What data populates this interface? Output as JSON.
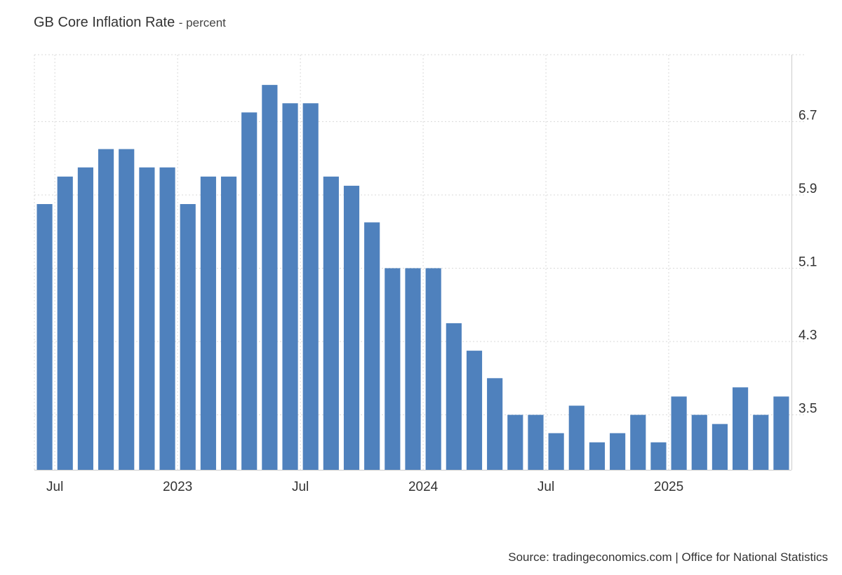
{
  "title": "GB Core Inflation Rate",
  "subtitle": "- percent",
  "source": "Source: tradingeconomics.com | Office for National Statistics",
  "colors": {
    "bar": "#4f81bd",
    "grid": "#d9d9d9",
    "axis": "#cccccc"
  },
  "chart_data": {
    "type": "bar",
    "x": [
      "2022-06",
      "2022-07",
      "2022-08",
      "2022-09",
      "2022-10",
      "2022-11",
      "2022-12",
      "2023-01",
      "2023-02",
      "2023-03",
      "2023-04",
      "2023-05",
      "2023-06",
      "2023-07",
      "2023-08",
      "2023-09",
      "2023-10",
      "2023-11",
      "2023-12",
      "2024-01",
      "2024-02",
      "2024-03",
      "2024-04",
      "2024-05",
      "2024-06",
      "2024-07",
      "2024-08",
      "2024-09",
      "2024-10",
      "2024-11",
      "2024-12",
      "2025-01",
      "2025-02",
      "2025-03",
      "2025-04",
      "2025-05",
      "2025-06"
    ],
    "values": [
      5.8,
      6.1,
      6.2,
      6.4,
      6.4,
      6.2,
      6.2,
      5.8,
      6.1,
      6.1,
      6.8,
      7.1,
      6.9,
      6.9,
      6.1,
      6.0,
      5.6,
      5.1,
      5.1,
      5.1,
      4.5,
      4.2,
      3.9,
      3.5,
      3.5,
      3.3,
      3.6,
      3.2,
      3.3,
      3.5,
      3.2,
      3.7,
      3.5,
      3.4,
      3.8,
      3.5,
      3.7
    ],
    "xticks": [
      {
        "label": "Jul",
        "x": "2022-07"
      },
      {
        "label": "2023",
        "x": "2023-01"
      },
      {
        "label": "Jul",
        "x": "2023-07"
      },
      {
        "label": "2024",
        "x": "2024-01"
      },
      {
        "label": "Jul",
        "x": "2024-07"
      },
      {
        "label": "2025",
        "x": "2025-01"
      }
    ],
    "yticks": [
      3.5,
      4.3,
      5.1,
      5.9,
      6.7
    ],
    "ylim": [
      2.9,
      7.43
    ],
    "grid": true,
    "yaxis_position": "right",
    "xlabel": "",
    "ylabel": ""
  }
}
